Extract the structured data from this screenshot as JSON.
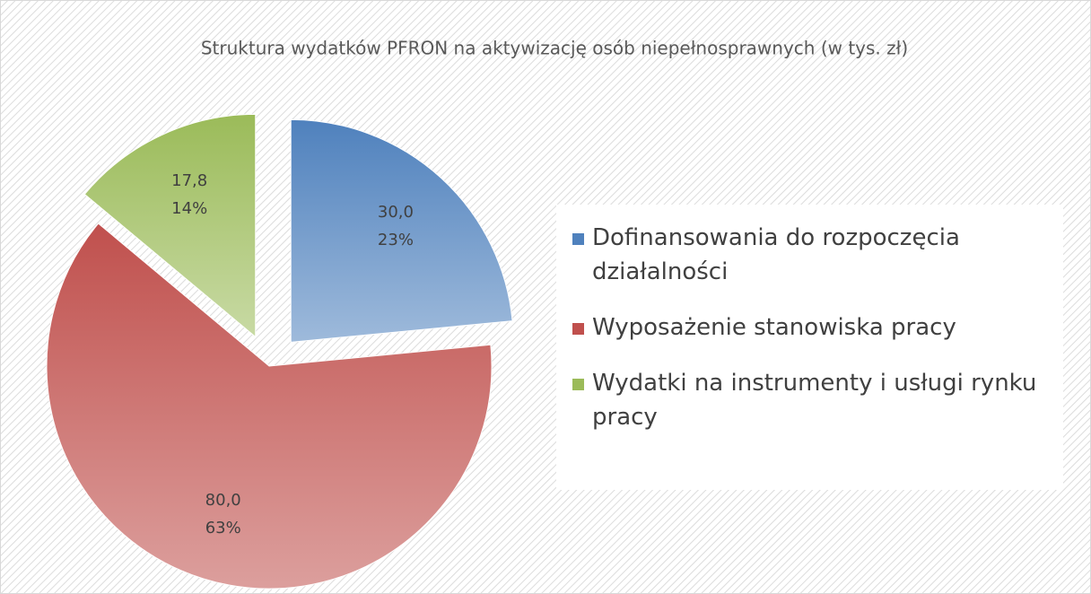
{
  "chart_data": {
    "type": "pie",
    "title": "Struktura wydatków PFRON na aktywizację osób niepełnosprawnych (w tys. zł)",
    "categories": [
      "Dofinansowania do rozpoczęcia działalności",
      "Wyposażenie stanowiska pracy",
      "Wydatki na instrumenty i usługi rynku pracy"
    ],
    "values": [
      30.0,
      80.0,
      17.8
    ],
    "value_labels": [
      "30,0",
      "80,0",
      "17,8"
    ],
    "percentages": [
      23,
      63,
      14
    ],
    "percentage_labels": [
      "23%",
      "63%",
      "14%"
    ],
    "colors": [
      "#4f81bd",
      "#c0504d",
      "#9bbb59"
    ],
    "exploded": [
      true,
      false,
      true
    ],
    "legend": "right"
  }
}
